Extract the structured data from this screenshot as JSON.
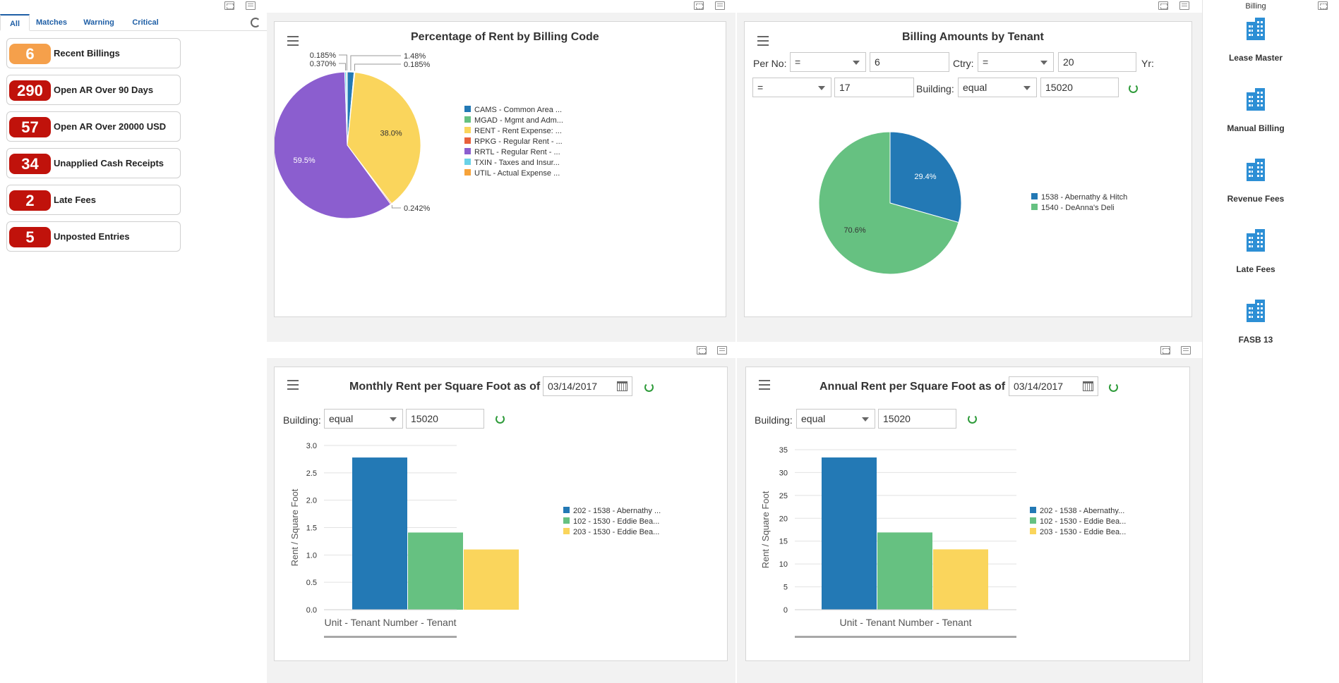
{
  "watchlist": {
    "tabs": [
      "All",
      "Matches",
      "Warning",
      "Critical"
    ],
    "items": [
      {
        "count": "6",
        "label": "Recent Billings",
        "color": "#f5a04b"
      },
      {
        "count": "290",
        "label": "Open AR Over 90 Days",
        "color": "#c0120b"
      },
      {
        "count": "57",
        "label": "Open AR Over 20000 USD",
        "color": "#c0120b"
      },
      {
        "count": "34",
        "label": "Unapplied Cash Receipts",
        "color": "#c0120b"
      },
      {
        "count": "2",
        "label": "Late Fees",
        "color": "#c0120b"
      },
      {
        "count": "5",
        "label": "Unposted Entries",
        "color": "#c0120b"
      }
    ]
  },
  "pie1": {
    "title": "Percentage of Rent by Billing Code",
    "legend": [
      "CAMS - Common Area ...",
      "MGAD - Mgmt and Adm...",
      "RENT - Rent Expense: ...",
      "RPKG - Regular Rent - ...",
      "RRTL - Regular Rent - ...",
      "TXIN - Taxes and Insur...",
      "UTIL - Actual Expense ..."
    ]
  },
  "pie2": {
    "title": "Billing Amounts by Tenant",
    "filters": {
      "per_no_label": "Per No:",
      "per_no_op": "=",
      "per_no_val": "6",
      "ctry_label": "Ctry:",
      "ctry_op": "=",
      "ctry_val": "20",
      "yr_label": "Yr:",
      "yr_op": "=",
      "yr_val": "17",
      "building_label": "Building:",
      "building_op": "equal",
      "building_val": "15020"
    },
    "legend": [
      "1538 - Abernathy & Hitch",
      "1540 - DeAnna's Deli"
    ]
  },
  "bar1": {
    "title": "Monthly Rent per Square Foot as of",
    "date": "03/14/2017",
    "building_label": "Building:",
    "building_op": "equal",
    "building_val": "15020",
    "legend": [
      "202 - 1538 - Abernathy ...",
      "102 - 1530 - Eddie Bea...",
      "203 - 1530 - Eddie Bea..."
    ]
  },
  "bar2": {
    "title": "Annual Rent per Square Foot as of",
    "date": "03/14/2017",
    "building_label": "Building:",
    "building_op": "equal",
    "building_val": "15020",
    "legend": [
      "202 - 1538 - Abernathy...",
      "102 - 1530 - Eddie Bea...",
      "203 - 1530 - Eddie Bea..."
    ]
  },
  "springboard": {
    "title": "Billing",
    "items": [
      "Lease Master",
      "Manual Billing",
      "Revenue Fees",
      "Late Fees",
      "FASB 13"
    ]
  },
  "colors": {
    "blue": "#2379b5",
    "green": "#66c181",
    "yellow": "#fad55c",
    "red": "#e8603c",
    "purple": "#8b5ecf",
    "cyan": "#69d2e7",
    "orange": "#f6a33a"
  },
  "chart_data": [
    {
      "type": "pie",
      "title": "Percentage of Rent by Billing Code",
      "categories": [
        "CAMS - Common Area ...",
        "MGAD - Mgmt and Adm...",
        "RENT - Rent Expense: ...",
        "RPKG - Regular Rent - ...",
        "RRTL - Regular Rent - ...",
        "TXIN - Taxes and Insur...",
        "UTIL - Actual Expense ..."
      ],
      "values": [
        1.48,
        0.185,
        38.0,
        0.242,
        59.5,
        0.37,
        0.185
      ],
      "labels": [
        "1.48%",
        "0.185%",
        "38.0%",
        "0.242%",
        "59.5%",
        "0.370%",
        "0.185%"
      ]
    },
    {
      "type": "pie",
      "title": "Billing Amounts by Tenant",
      "categories": [
        "1538 - Abernathy & Hitch",
        "1540 - DeAnna's Deli"
      ],
      "values": [
        29.4,
        70.6
      ],
      "labels": [
        "29.4%",
        "70.6%"
      ]
    },
    {
      "type": "bar",
      "title": "Monthly Rent per Square Foot as of 03/14/2017",
      "xlabel": "Unit - Tenant Number - Tenant",
      "ylabel": "Rent / Square Foot",
      "series": [
        {
          "name": "202 - 1538 - Abernathy ...",
          "values": [
            2.78
          ]
        },
        {
          "name": "102 - 1530 - Eddie Bea...",
          "values": [
            1.41
          ]
        },
        {
          "name": "203 - 1530 - Eddie Bea...",
          "values": [
            1.1
          ]
        }
      ],
      "ylim": [
        0,
        3.0
      ],
      "yticks": [
        "0.0",
        "0.5",
        "1.0",
        "1.5",
        "2.0",
        "2.5",
        "3.0"
      ]
    },
    {
      "type": "bar",
      "title": "Annual Rent per Square Foot as of 03/14/2017",
      "xlabel": "Unit - Tenant Number - Tenant",
      "ylabel": "Rent / Square Foot",
      "series": [
        {
          "name": "202 - 1538 - Abernathy...",
          "values": [
            33.3
          ]
        },
        {
          "name": "102 - 1530 - Eddie Bea...",
          "values": [
            16.9
          ]
        },
        {
          "name": "203 - 1530 - Eddie Bea...",
          "values": [
            13.2
          ]
        }
      ],
      "ylim": [
        0,
        35
      ],
      "yticks": [
        "0",
        "5",
        "10",
        "15",
        "20",
        "25",
        "30",
        "35"
      ]
    }
  ]
}
